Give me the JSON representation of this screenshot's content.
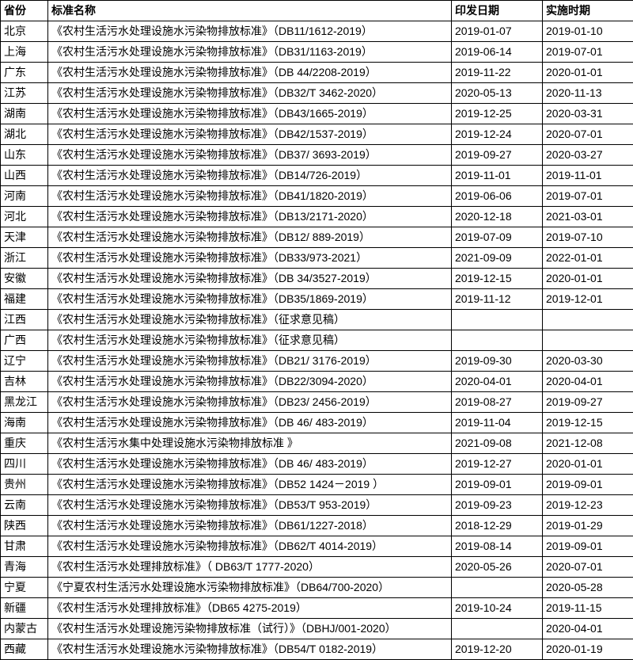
{
  "table": {
    "columns": [
      "省份",
      "标准名称",
      "印发日期",
      "实施时期"
    ],
    "rows": [
      [
        "北京",
        "《农村生活污水处理设施水污染物排放标准》（DB11/1612-2019）",
        "2019-01-07",
        "2019-01-10"
      ],
      [
        "上海",
        "《农村生活污水处理设施水污染物排放标准》（DB31/1163-2019）",
        "2019-06-14",
        "2019-07-01"
      ],
      [
        "广东",
        "《农村生活污水处理设施水污染物排放标准》（DB 44/2208-2019）",
        "2019-11-22",
        "2020-01-01"
      ],
      [
        "江苏",
        "《农村生活污水处理设施水污染物排放标准》（DB32/T 3462-2020）",
        "2020-05-13",
        "2020-11-13"
      ],
      [
        "湖南",
        "《农村生活污水处理设施水污染物排放标准》（DB43/1665-2019）",
        "2019-12-25",
        "2020-03-31"
      ],
      [
        "湖北",
        "《农村生活污水处理设施水污染物排放标准》（DB42/1537-2019）",
        "2019-12-24",
        "2020-07-01"
      ],
      [
        "山东",
        "《农村生活污水处理设施水污染物排放标准》（DB37/ 3693-2019）",
        "2019-09-27",
        "2020-03-27"
      ],
      [
        "山西",
        "《农村生活污水处理设施水污染物排放标准》（DB14/726-2019）",
        "2019-11-01",
        "2019-11-01"
      ],
      [
        "河南",
        "《农村生活污水处理设施水污染物排放标准》（DB41/1820-2019）",
        "2019-06-06",
        "2019-07-01"
      ],
      [
        "河北",
        "《农村生活污水处理设施水污染物排放标准》（DB13/2171-2020）",
        "2020-12-18",
        "2021-03-01"
      ],
      [
        "天津",
        "《农村生活污水处理设施水污染物排放标准》（DB12/ 889-2019）",
        "2019-07-09",
        "2019-07-10"
      ],
      [
        "浙江",
        "《农村生活污水处理设施水污染物排放标准》（DB33/973-2021）",
        "2021-09-09",
        "2022-01-01"
      ],
      [
        "安徽",
        "《农村生活污水处理设施水污染物排放标准》（DB 34/3527-2019）",
        "2019-12-15",
        "2020-01-01"
      ],
      [
        "福建",
        "《农村生活污水处理设施水污染物排放标准》（DB35/1869-2019）",
        "2019-11-12",
        "2019-12-01"
      ],
      [
        "江西",
        "《农村生活污水处理设施水污染物排放标准》（征求意见稿）",
        "",
        ""
      ],
      [
        "广西",
        "《农村生活污水处理设施水污染物排放标准》（征求意见稿）",
        "",
        ""
      ],
      [
        "辽宁",
        "《农村生活污水处理设施水污染物排放标准》（DB21/ 3176-2019）",
        "2019-09-30",
        "2020-03-30"
      ],
      [
        "吉林",
        "《农村生活污水处理设施水污染物排放标准》（DB22/3094-2020）",
        "2020-04-01",
        "2020-04-01"
      ],
      [
        "黑龙江",
        "《农村生活污水处理设施水污染物排放标准》（DB23/ 2456-2019）",
        "2019-08-27",
        "2019-09-27"
      ],
      [
        "海南",
        "《农村生活污水处理设施水污染物排放标准》（DB 46/ 483-2019）",
        "2019-11-04",
        "2019-12-15"
      ],
      [
        "重庆",
        "《农村生活污水集中处理设施水污染物排放标准 》",
        "2021-09-08",
        "2021-12-08"
      ],
      [
        "四川",
        "《农村生活污水处理设施水污染物排放标准》（DB 46/ 483-2019）",
        "2019-12-27",
        "2020-01-01"
      ],
      [
        "贵州",
        "《农村生活污水处理设施水污染物排放标准》（DB52 1424－2019 ）",
        "2019-09-01",
        "2019-09-01"
      ],
      [
        "云南",
        "《农村生活污水处理设施水污染物排放标准》（DB53/T 953-2019）",
        "2019-09-23",
        "2019-12-23"
      ],
      [
        "陕西",
        "《农村生活污水处理设施水污染物排放标准》（DB61/1227-2018）",
        "2018-12-29",
        "2019-01-29"
      ],
      [
        "甘肃",
        "《农村生活污水处理设施水污染物排放标准》（DB62/T 4014-2019）",
        "2019-08-14",
        "2019-09-01"
      ],
      [
        "青海",
        "《农村生活污水处理排放标准》（ DB63/T 1777-2020）",
        "2020-05-26",
        "2020-07-01"
      ],
      [
        "宁夏",
        "《宁夏农村生活污水处理设施水污染物排放标准》（DB64/700-2020）",
        "",
        "2020-05-28"
      ],
      [
        "新疆",
        "《农村生活污水处理排放标准》（DB65 4275-2019）",
        "2019-10-24",
        "2019-11-15"
      ],
      [
        "内蒙古",
        "《农村生活污水处理设施污染物排放标准（试行）》（DBHJ/001-2020）",
        "",
        "2020-04-01"
      ],
      [
        "西藏",
        "《农村生活污水处理设施水污染物排放标准》（DB54/T 0182-2019）",
        "2019-12-20",
        "2020-01-19"
      ]
    ],
    "border_color": "#000000",
    "background_color": "#ffffff",
    "font_size": 14
  }
}
